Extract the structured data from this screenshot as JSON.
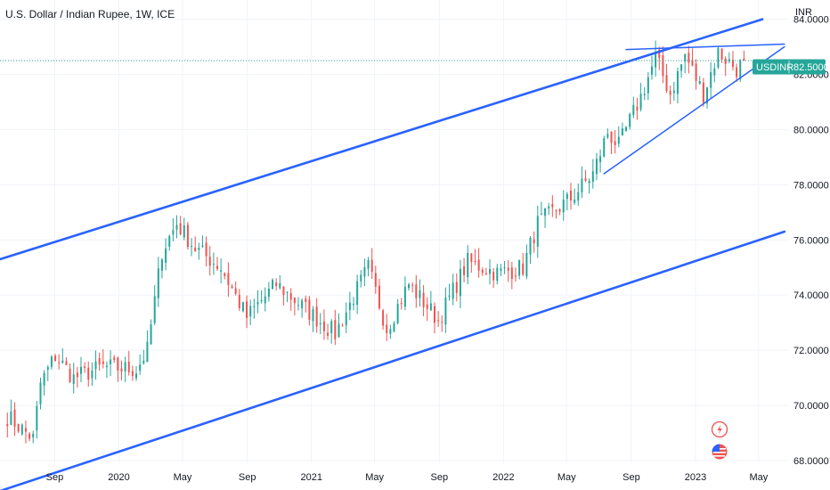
{
  "chart_data": {
    "type": "candlestick",
    "title": "U.S. Dollar / Indian Rupee, 1W, ICE",
    "currency_label": "INR",
    "symbol": "USDINR",
    "last_price": "82.5000",
    "last_value": 82.5,
    "ylim": [
      67.0,
      84.6
    ],
    "y_ticks": [
      {
        "label": "84.0000",
        "value": 84
      },
      {
        "label": "82.0000",
        "value": 82
      },
      {
        "label": "80.0000",
        "value": 80
      },
      {
        "label": "78.0000",
        "value": 78
      },
      {
        "label": "76.0000",
        "value": 76
      },
      {
        "label": "74.0000",
        "value": 74
      },
      {
        "label": "72.0000",
        "value": 72
      },
      {
        "label": "70.0000",
        "value": 70
      },
      {
        "label": "68.0000",
        "value": 68
      }
    ],
    "x_ticks": [
      {
        "label": "Sep",
        "date": "2019-09-01"
      },
      {
        "label": "2020",
        "date": "2020-01-01"
      },
      {
        "label": "May",
        "date": "2020-05-01"
      },
      {
        "label": "Sep",
        "date": "2020-09-01"
      },
      {
        "label": "2021",
        "date": "2021-01-01"
      },
      {
        "label": "May",
        "date": "2021-05-01"
      },
      {
        "label": "Sep",
        "date": "2021-09-01"
      },
      {
        "label": "2022",
        "date": "2022-01-01"
      },
      {
        "label": "May",
        "date": "2022-05-01"
      },
      {
        "label": "Sep",
        "date": "2022-09-01"
      },
      {
        "label": "2023",
        "date": "2023-01-01"
      },
      {
        "label": "May",
        "date": "2023-05-01"
      }
    ],
    "x_range": [
      "2019-05-20",
      "2023-06-26"
    ],
    "grid": true,
    "anchors": [
      {
        "date": "2019-06-03",
        "close": 69.6
      },
      {
        "date": "2019-07-22",
        "close": 68.8
      },
      {
        "date": "2019-08-05",
        "close": 70.8
      },
      {
        "date": "2019-09-02",
        "close": 71.8
      },
      {
        "date": "2019-10-07",
        "close": 71.0
      },
      {
        "date": "2019-12-02",
        "close": 71.4
      },
      {
        "date": "2020-02-03",
        "close": 71.3
      },
      {
        "date": "2020-02-24",
        "close": 72.0
      },
      {
        "date": "2020-03-23",
        "close": 75.6
      },
      {
        "date": "2020-04-20",
        "close": 76.6
      },
      {
        "date": "2020-05-25",
        "close": 75.7
      },
      {
        "date": "2020-07-13",
        "close": 75.0
      },
      {
        "date": "2020-08-31",
        "close": 73.2
      },
      {
        "date": "2020-10-26",
        "close": 74.4
      },
      {
        "date": "2020-12-14",
        "close": 73.6
      },
      {
        "date": "2021-02-15",
        "close": 72.6
      },
      {
        "date": "2021-04-19",
        "close": 75.0
      },
      {
        "date": "2021-05-24",
        "close": 72.8
      },
      {
        "date": "2021-07-05",
        "close": 74.4
      },
      {
        "date": "2021-08-30",
        "close": 73.1
      },
      {
        "date": "2021-10-25",
        "close": 75.2
      },
      {
        "date": "2021-12-20",
        "close": 74.8
      },
      {
        "date": "2022-02-07",
        "close": 75.0
      },
      {
        "date": "2022-03-07",
        "close": 76.6
      },
      {
        "date": "2022-05-09",
        "close": 77.5
      },
      {
        "date": "2022-06-20",
        "close": 78.4
      },
      {
        "date": "2022-07-18",
        "close": 79.9
      },
      {
        "date": "2022-08-08",
        "close": 79.4
      },
      {
        "date": "2022-09-19",
        "close": 81.2
      },
      {
        "date": "2022-10-17",
        "close": 82.6
      },
      {
        "date": "2022-11-14",
        "close": 81.3
      },
      {
        "date": "2022-12-12",
        "close": 82.7
      },
      {
        "date": "2023-01-16",
        "close": 81.3
      },
      {
        "date": "2023-02-13",
        "close": 82.8
      },
      {
        "date": "2023-03-20",
        "close": 82.2
      },
      {
        "date": "2023-04-03",
        "close": 82.5
      }
    ],
    "trendlines": [
      {
        "name": "channel-upper",
        "from": {
          "date": "2019-05-20",
          "value": 75.3
        },
        "to": {
          "date": "2023-05-08",
          "value": 84.0
        }
      },
      {
        "name": "channel-lower",
        "from": {
          "date": "2019-05-20",
          "value": 66.9
        },
        "to": {
          "date": "2023-06-19",
          "value": 76.3
        }
      },
      {
        "name": "triangle-upper",
        "from": {
          "date": "2022-08-22",
          "value": 82.9
        },
        "to": {
          "date": "2023-06-19",
          "value": 83.1
        }
      },
      {
        "name": "triangle-lower",
        "from": {
          "date": "2022-07-11",
          "value": 78.4
        },
        "to": {
          "date": "2023-06-19",
          "value": 83.0
        }
      }
    ],
    "colors": {
      "up": "#26a69a",
      "down": "#ef5350",
      "trendline": "#2962ff",
      "price_line": "#26a69a",
      "grid": "#f0f3fa",
      "label_bg": "#26a69a",
      "label_text": "#ffffff"
    },
    "icons": [
      "lightning-icon",
      "us-flag-icon"
    ]
  }
}
